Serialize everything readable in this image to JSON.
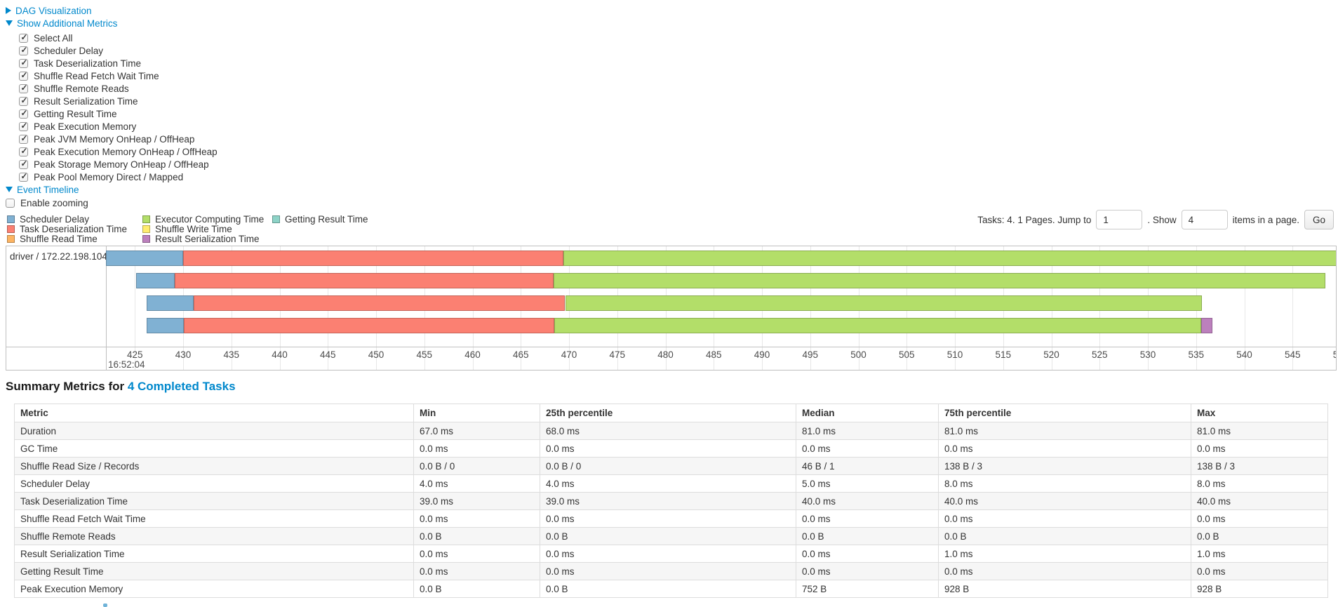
{
  "colors": {
    "link": "#0088cc"
  },
  "controls": {
    "dag_label": "DAG Visualization",
    "metrics_label": "Show Additional Metrics",
    "event_timeline_label": "Event Timeline",
    "enable_zooming_label": "Enable zooming",
    "enable_zooming_checked": false,
    "checkboxes": [
      {
        "label": "Select All",
        "checked": true
      },
      {
        "label": "Scheduler Delay",
        "checked": true
      },
      {
        "label": "Task Deserialization Time",
        "checked": true
      },
      {
        "label": "Shuffle Read Fetch Wait Time",
        "checked": true
      },
      {
        "label": "Shuffle Remote Reads",
        "checked": true
      },
      {
        "label": "Result Serialization Time",
        "checked": true
      },
      {
        "label": "Getting Result Time",
        "checked": true
      },
      {
        "label": "Peak Execution Memory",
        "checked": true
      },
      {
        "label": "Peak JVM Memory OnHeap / OffHeap",
        "checked": true
      },
      {
        "label": "Peak Execution Memory OnHeap / OffHeap",
        "checked": true
      },
      {
        "label": "Peak Storage Memory OnHeap / OffHeap",
        "checked": true
      },
      {
        "label": "Peak Pool Memory Direct / Mapped",
        "checked": true
      }
    ]
  },
  "pagination": {
    "tasks_text": "Tasks: 4. 1 Pages. Jump to",
    "jump_value": "1",
    "show_text": ". Show",
    "show_value": "4",
    "items_text": "items in a page.",
    "go_label": "Go"
  },
  "chart_data": {
    "type": "timeline",
    "title": "Event Timeline",
    "group_label": "driver / 172.22.198.104",
    "x_axis": {
      "view_min": 422,
      "view_max": 550,
      "tick_min": 425,
      "tick_max": 550,
      "tick_step": 5,
      "major_label": "16:52:04",
      "unit": "milliseconds"
    },
    "colors": {
      "scheduler-delay": "#80B1D3",
      "task-deserialization": "#FB8072",
      "shuffle-read": "#FDB462",
      "executor-computing": "#B3DE69",
      "shuffle-write": "#FFED6F",
      "result-serialization": "#BC80BD",
      "getting-result": "#8DD3C7"
    },
    "legend_columns": [
      [
        {
          "label": "Scheduler Delay",
          "type": "scheduler-delay"
        },
        {
          "label": "Task Deserialization Time",
          "type": "task-deserialization"
        },
        {
          "label": "Shuffle Read Time",
          "type": "shuffle-read"
        }
      ],
      [
        {
          "label": "Executor Computing Time",
          "type": "executor-computing"
        },
        {
          "label": "Shuffle Write Time",
          "type": "shuffle-write"
        },
        {
          "label": "Result Serialization Time",
          "type": "result-serialization"
        }
      ],
      [
        {
          "label": "Getting Result Time",
          "type": "getting-result"
        }
      ]
    ],
    "tasks": [
      {
        "segments": [
          [
            "scheduler-delay",
            422.0,
            430.0
          ],
          [
            "task-deserialization",
            430.0,
            469.4
          ],
          [
            "executor-computing",
            469.4,
            550.3
          ]
        ]
      },
      {
        "segments": [
          [
            "scheduler-delay",
            425.1,
            429.1
          ],
          [
            "task-deserialization",
            429.1,
            468.4
          ],
          [
            "executor-computing",
            468.4,
            548.4
          ]
        ]
      },
      {
        "segments": [
          [
            "scheduler-delay",
            426.2,
            431.1
          ],
          [
            "task-deserialization",
            431.1,
            469.6
          ],
          [
            "executor-computing",
            469.6,
            535.6
          ]
        ]
      },
      {
        "segments": [
          [
            "scheduler-delay",
            426.2,
            430.1
          ],
          [
            "task-deserialization",
            430.1,
            468.5
          ],
          [
            "executor-computing",
            468.5,
            535.5
          ],
          [
            "result-serialization",
            535.5,
            536.7
          ]
        ]
      }
    ]
  },
  "summary": {
    "title_prefix": "Summary Metrics for ",
    "title_link": "4 Completed Tasks",
    "table": {
      "headers": [
        "Metric",
        "Min",
        "25th percentile",
        "Median",
        "75th percentile",
        "Max"
      ],
      "rows": [
        [
          "Duration",
          "67.0 ms",
          "68.0 ms",
          "81.0 ms",
          "81.0 ms",
          "81.0 ms"
        ],
        [
          "GC Time",
          "0.0 ms",
          "0.0 ms",
          "0.0 ms",
          "0.0 ms",
          "0.0 ms"
        ],
        [
          "Shuffle Read Size / Records",
          "0.0 B / 0",
          "0.0 B / 0",
          "46 B / 1",
          "138 B / 3",
          "138 B / 3"
        ],
        [
          "Scheduler Delay",
          "4.0 ms",
          "4.0 ms",
          "5.0 ms",
          "8.0 ms",
          "8.0 ms"
        ],
        [
          "Task Deserialization Time",
          "39.0 ms",
          "39.0 ms",
          "40.0 ms",
          "40.0 ms",
          "40.0 ms"
        ],
        [
          "Shuffle Read Fetch Wait Time",
          "0.0 ms",
          "0.0 ms",
          "0.0 ms",
          "0.0 ms",
          "0.0 ms"
        ],
        [
          "Shuffle Remote Reads",
          "0.0 B",
          "0.0 B",
          "0.0 B",
          "0.0 B",
          "0.0 B"
        ],
        [
          "Result Serialization Time",
          "0.0 ms",
          "0.0 ms",
          "0.0 ms",
          "1.0 ms",
          "1.0 ms"
        ],
        [
          "Getting Result Time",
          "0.0 ms",
          "0.0 ms",
          "0.0 ms",
          "0.0 ms",
          "0.0 ms"
        ],
        [
          "Peak Execution Memory",
          "0.0 B",
          "0.0 B",
          "752 B",
          "928 B",
          "928 B"
        ]
      ]
    }
  }
}
